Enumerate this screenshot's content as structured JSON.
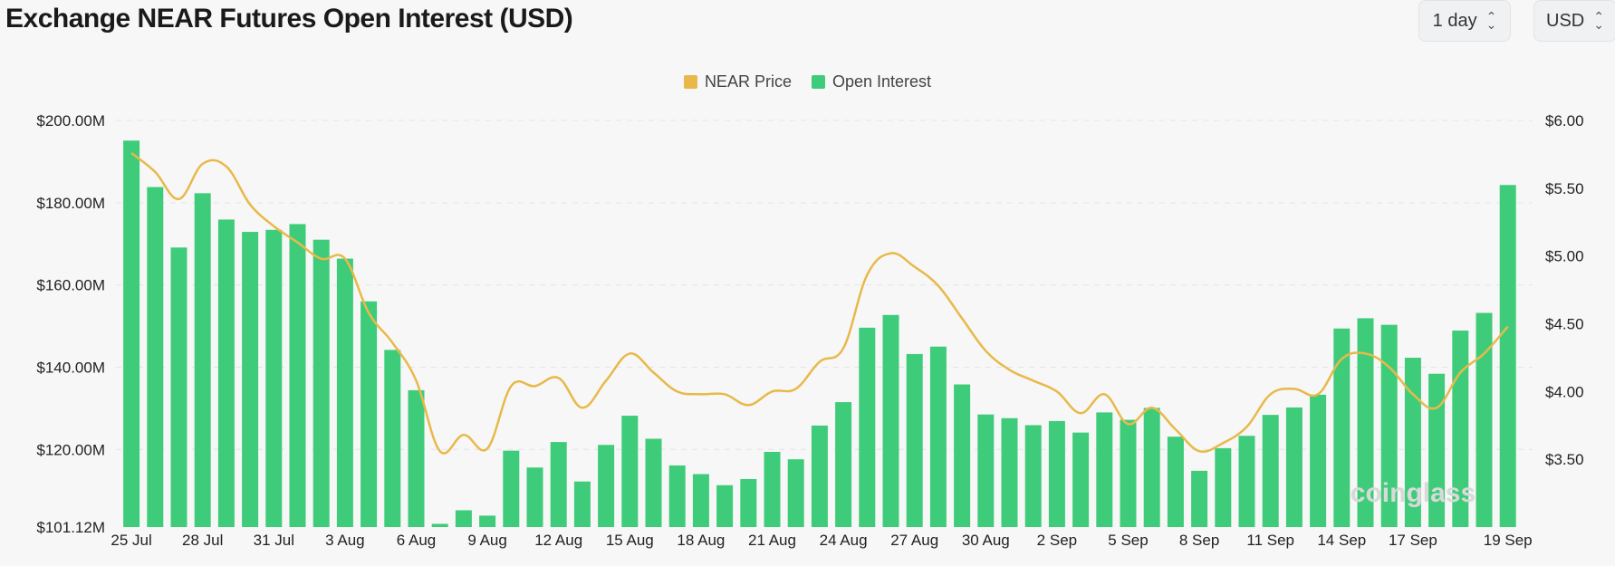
{
  "title": "Exchange NEAR Futures Open Interest (USD)",
  "controls": {
    "interval": "1 day",
    "currency": "USD"
  },
  "legend": [
    {
      "label": "NEAR Price",
      "color": "#e8b94a"
    },
    {
      "label": "Open Interest",
      "color": "#3fcc7a"
    }
  ],
  "watermark": "coinglass",
  "chart_data": {
    "type": "bar",
    "x_ticks": [
      "25 Jul",
      "28 Jul",
      "31 Jul",
      "3 Aug",
      "6 Aug",
      "9 Aug",
      "12 Aug",
      "15 Aug",
      "18 Aug",
      "21 Aug",
      "24 Aug",
      "27 Aug",
      "30 Aug",
      "2 Sep",
      "5 Sep",
      "8 Sep",
      "11 Sep",
      "14 Sep",
      "17 Sep",
      "19 Sep"
    ],
    "y_left": {
      "ticks": [
        "$200.00M",
        "$180.00M",
        "$160.00M",
        "$140.00M",
        "$120.00M",
        "$101.12M"
      ],
      "min": 101.12,
      "max": 200,
      "unit": "M USD"
    },
    "y_right": {
      "ticks": [
        "$6.00",
        "$5.50",
        "$5.00",
        "$4.50",
        "$4.00",
        "$3.50"
      ],
      "min": 3.0,
      "max": 6.0
    },
    "grid": true,
    "legend_position": "top-center",
    "series": [
      {
        "name": "Open Interest",
        "type": "bar",
        "axis": "left",
        "color": "#3fcc7a",
        "values": [
          195.1,
          183.8,
          169.1,
          182.3,
          175.9,
          172.9,
          173.4,
          174.8,
          171.0,
          166.4,
          156.0,
          144.2,
          134.4,
          101.9,
          105.2,
          103.9,
          119.7,
          115.6,
          121.8,
          112.2,
          121.1,
          128.2,
          122.6,
          116.1,
          114.0,
          111.3,
          112.8,
          119.4,
          117.6,
          125.8,
          131.5,
          149.6,
          152.7,
          143.2,
          145.0,
          135.8,
          128.5,
          127.6,
          125.9,
          126.9,
          124.1,
          129.0,
          127.2,
          130.1,
          123.1,
          114.8,
          120.3,
          123.3,
          128.4,
          130.2,
          133.3,
          149.4,
          151.9,
          150.3,
          142.3,
          138.4,
          148.9,
          153.2,
          184.3
        ]
      },
      {
        "name": "NEAR Price",
        "type": "line",
        "axis": "right",
        "color": "#e8b94a",
        "values": [
          5.76,
          5.62,
          5.42,
          5.68,
          5.66,
          5.38,
          5.22,
          5.1,
          4.98,
          4.98,
          4.58,
          4.36,
          4.08,
          3.56,
          3.68,
          3.58,
          4.04,
          4.04,
          4.1,
          3.88,
          4.08,
          4.28,
          4.14,
          4.0,
          3.98,
          3.98,
          3.9,
          4.0,
          4.02,
          4.22,
          4.32,
          4.86,
          5.02,
          4.92,
          4.78,
          4.54,
          4.3,
          4.16,
          4.08,
          4.0,
          3.84,
          3.98,
          3.76,
          3.88,
          3.72,
          3.56,
          3.62,
          3.74,
          3.98,
          4.02,
          3.98,
          4.24,
          4.28,
          4.18,
          3.98,
          3.88,
          4.14,
          4.28,
          4.48
        ]
      }
    ]
  }
}
